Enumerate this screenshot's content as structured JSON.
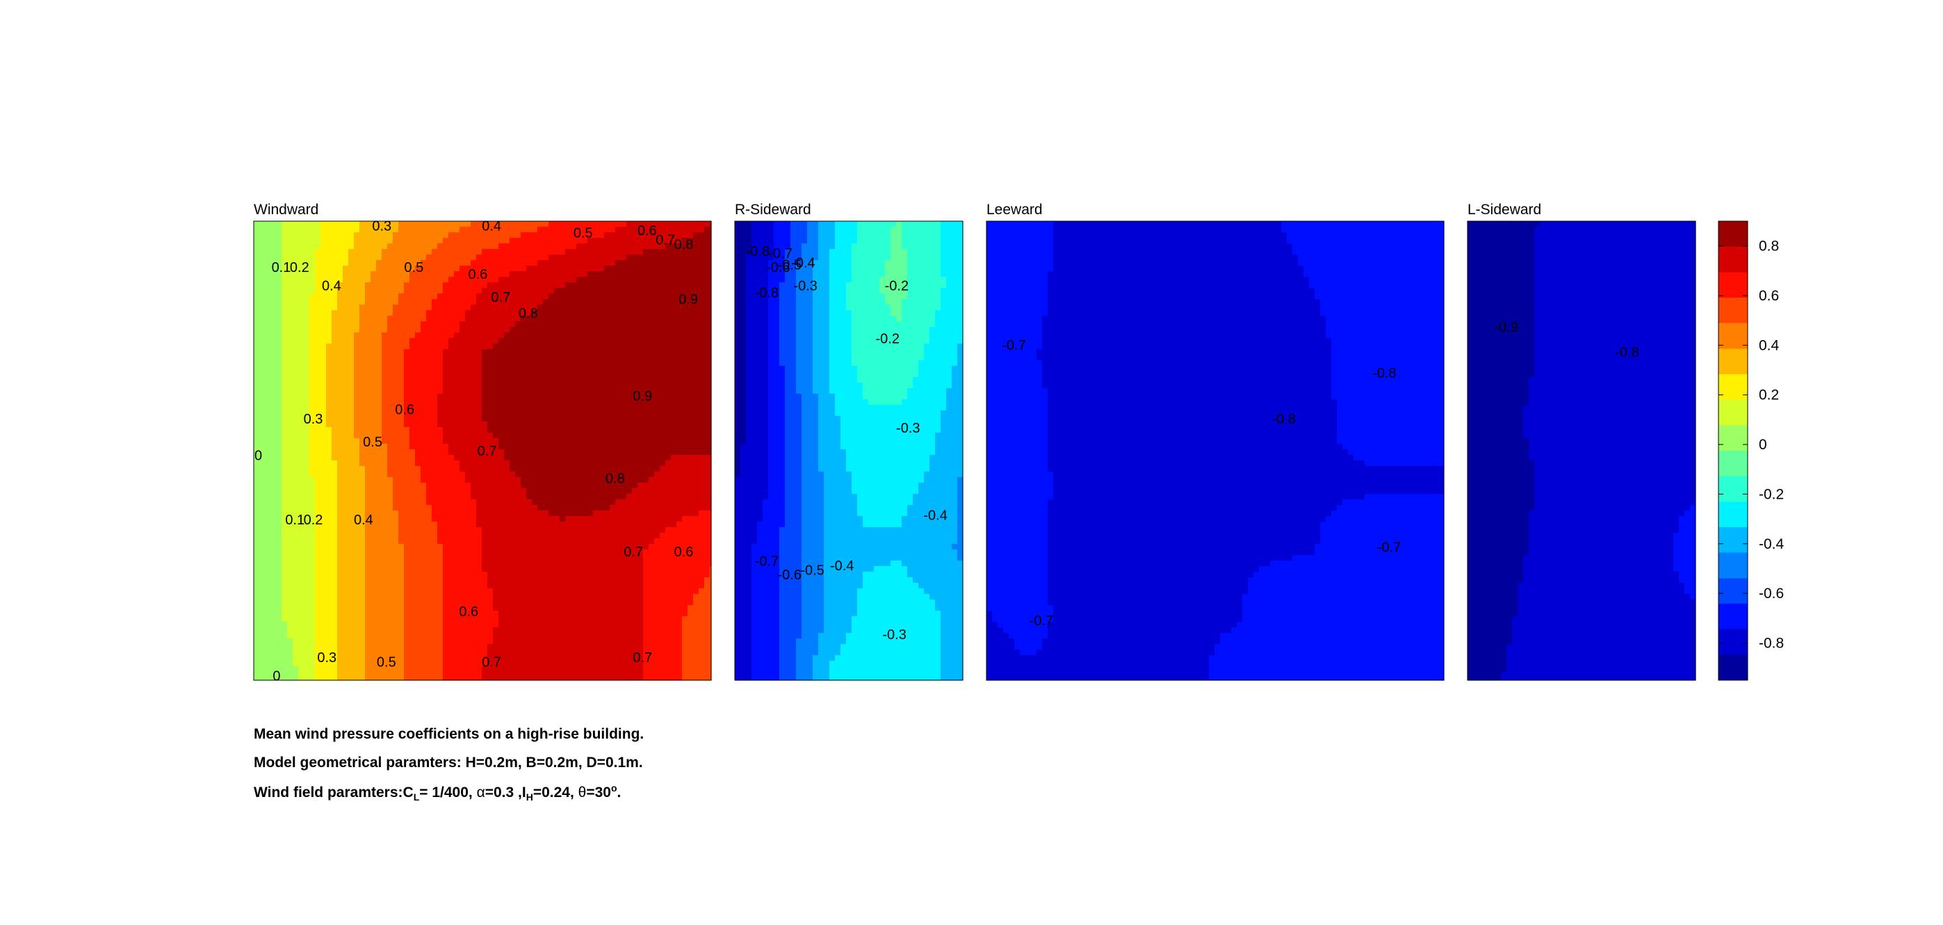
{
  "figure": {
    "caption_line1": "Mean wind pressure coefficients on a high-rise building.",
    "caption_line2": "Model geometrical paramters: H=0.2m, B=0.2m, D=0.1m.",
    "caption_line3": {
      "prefix": "Wind field paramters:C",
      "cl_sub": "L",
      "mid1": "= 1/400, ",
      "alpha": "α",
      "mid2": "=0.3 ,I",
      "ih_sub": "H",
      "mid3": "=0.24, ",
      "theta": "θ",
      "mid4": "=30",
      "deg_sup": "o",
      "suffix": "."
    }
  },
  "chart_data": [
    {
      "type": "heatmap",
      "title": "Windward",
      "z_range": [
        -0.95,
        0.9
      ],
      "grid": [
        [
          0.0,
          0.1,
          0.2,
          0.3,
          0.4,
          0.45,
          0.5,
          0.55,
          0.6,
          0.65,
          0.7,
          0.75,
          0.8
        ],
        [
          0.0,
          0.1,
          0.25,
          0.4,
          0.5,
          0.6,
          0.7,
          0.75,
          0.8,
          0.85,
          0.9,
          0.9,
          0.9
        ],
        [
          0.0,
          0.1,
          0.3,
          0.45,
          0.6,
          0.7,
          0.8,
          0.85,
          0.9,
          0.95,
          0.95,
          0.9,
          0.9
        ],
        [
          0.0,
          0.1,
          0.3,
          0.45,
          0.6,
          0.72,
          0.8,
          0.88,
          0.92,
          0.95,
          0.9,
          0.85,
          0.85
        ],
        [
          0.0,
          0.1,
          0.25,
          0.4,
          0.55,
          0.65,
          0.72,
          0.8,
          0.85,
          0.85,
          0.8,
          0.75,
          0.75
        ],
        [
          0.0,
          0.1,
          0.25,
          0.4,
          0.5,
          0.6,
          0.7,
          0.75,
          0.75,
          0.72,
          0.7,
          0.65,
          0.6
        ],
        [
          0.0,
          0.1,
          0.25,
          0.4,
          0.5,
          0.6,
          0.68,
          0.72,
          0.75,
          0.75,
          0.7,
          0.6,
          0.55
        ],
        [
          0.0,
          0.05,
          0.25,
          0.4,
          0.5,
          0.6,
          0.7,
          0.75,
          0.75,
          0.75,
          0.7,
          0.6,
          0.55
        ]
      ],
      "contour_labels": [
        {
          "text": "0.3",
          "x": 0.28,
          "y": 0.01
        },
        {
          "text": "0.4",
          "x": 0.52,
          "y": 0.01
        },
        {
          "text": "0.5",
          "x": 0.72,
          "y": 0.025
        },
        {
          "text": "0.6",
          "x": 0.86,
          "y": 0.02
        },
        {
          "text": "0.7",
          "x": 0.9,
          "y": 0.04
        },
        {
          "text": "0.8",
          "x": 0.94,
          "y": 0.05
        },
        {
          "text": "0.1",
          "x": 0.06,
          "y": 0.1
        },
        {
          "text": "0.2",
          "x": 0.1,
          "y": 0.1
        },
        {
          "text": "0.4",
          "x": 0.17,
          "y": 0.14
        },
        {
          "text": "0.5",
          "x": 0.35,
          "y": 0.1
        },
        {
          "text": "0.6",
          "x": 0.49,
          "y": 0.115
        },
        {
          "text": "0.7",
          "x": 0.54,
          "y": 0.165
        },
        {
          "text": "0.8",
          "x": 0.6,
          "y": 0.2
        },
        {
          "text": "0.9",
          "x": 0.95,
          "y": 0.17
        },
        {
          "text": "0.3",
          "x": 0.13,
          "y": 0.43
        },
        {
          "text": "0.6",
          "x": 0.33,
          "y": 0.41
        },
        {
          "text": "0.5",
          "x": 0.26,
          "y": 0.48
        },
        {
          "text": "0.9",
          "x": 0.85,
          "y": 0.38
        },
        {
          "text": "0",
          "x": 0.01,
          "y": 0.51
        },
        {
          "text": "0.7",
          "x": 0.51,
          "y": 0.5
        },
        {
          "text": "0.8",
          "x": 0.79,
          "y": 0.56
        },
        {
          "text": "0.1",
          "x": 0.09,
          "y": 0.65
        },
        {
          "text": "0.2",
          "x": 0.13,
          "y": 0.65
        },
        {
          "text": "0.4",
          "x": 0.24,
          "y": 0.65
        },
        {
          "text": "0.7",
          "x": 0.83,
          "y": 0.72
        },
        {
          "text": "0.6",
          "x": 0.94,
          "y": 0.72
        },
        {
          "text": "0.6",
          "x": 0.47,
          "y": 0.85
        },
        {
          "text": "0.3",
          "x": 0.16,
          "y": 0.95
        },
        {
          "text": "0.5",
          "x": 0.29,
          "y": 0.96
        },
        {
          "text": "0.7",
          "x": 0.52,
          "y": 0.96
        },
        {
          "text": "0.7",
          "x": 0.85,
          "y": 0.95
        },
        {
          "text": "0",
          "x": 0.05,
          "y": 0.99
        }
      ]
    },
    {
      "type": "heatmap",
      "title": "R-Sideward",
      "z_range": [
        -0.95,
        0.9
      ],
      "grid": [
        [
          -0.9,
          -0.8,
          -0.6,
          -0.35,
          -0.2,
          -0.12,
          -0.2,
          -0.3
        ],
        [
          -0.9,
          -0.75,
          -0.5,
          -0.3,
          -0.15,
          -0.1,
          -0.18,
          -0.3
        ],
        [
          -0.9,
          -0.75,
          -0.5,
          -0.3,
          -0.18,
          -0.15,
          -0.25,
          -0.35
        ],
        [
          -0.9,
          -0.75,
          -0.55,
          -0.35,
          -0.25,
          -0.25,
          -0.3,
          -0.4
        ],
        [
          -0.85,
          -0.75,
          -0.55,
          -0.38,
          -0.3,
          -0.3,
          -0.35,
          -0.45
        ],
        [
          -0.8,
          -0.7,
          -0.55,
          -0.4,
          -0.35,
          -0.35,
          -0.4,
          -0.45
        ],
        [
          -0.8,
          -0.7,
          -0.55,
          -0.4,
          -0.3,
          -0.25,
          -0.3,
          -0.4
        ],
        [
          -0.8,
          -0.7,
          -0.5,
          -0.3,
          -0.25,
          -0.25,
          -0.3,
          -0.4
        ]
      ],
      "contour_labels": [
        {
          "text": "-0.8",
          "x": 0.1,
          "y": 0.065
        },
        {
          "text": "-0.7",
          "x": 0.2,
          "y": 0.07
        },
        {
          "text": "-0.6",
          "x": 0.19,
          "y": 0.1
        },
        {
          "text": "-0.5",
          "x": 0.24,
          "y": 0.095
        },
        {
          "text": "-0.4",
          "x": 0.3,
          "y": 0.09
        },
        {
          "text": "-0.3",
          "x": 0.31,
          "y": 0.14
        },
        {
          "text": "-0.8",
          "x": 0.14,
          "y": 0.155
        },
        {
          "text": "-0.2",
          "x": 0.71,
          "y": 0.14
        },
        {
          "text": "-0.2",
          "x": 0.67,
          "y": 0.255
        },
        {
          "text": "-0.3",
          "x": 0.76,
          "y": 0.45
        },
        {
          "text": "-0.4",
          "x": 0.88,
          "y": 0.64
        },
        {
          "text": "-0.7",
          "x": 0.14,
          "y": 0.74
        },
        {
          "text": "-0.6",
          "x": 0.24,
          "y": 0.77
        },
        {
          "text": "-0.5",
          "x": 0.34,
          "y": 0.76
        },
        {
          "text": "-0.4",
          "x": 0.47,
          "y": 0.75
        },
        {
          "text": "-0.3",
          "x": 0.7,
          "y": 0.9
        }
      ]
    },
    {
      "type": "heatmap",
      "title": "Leeward",
      "z_range": [
        -0.95,
        0.9
      ],
      "grid": [
        [
          -0.65,
          -0.7,
          -0.75,
          -0.75,
          -0.75,
          -0.75,
          -0.75,
          -0.75,
          -0.75,
          -0.72,
          -0.7,
          -0.7,
          -0.7,
          -0.7
        ],
        [
          -0.7,
          -0.73,
          -0.75,
          -0.75,
          -0.75,
          -0.75,
          -0.75,
          -0.75,
          -0.78,
          -0.75,
          -0.72,
          -0.7,
          -0.7,
          -0.7
        ],
        [
          -0.72,
          -0.74,
          -0.75,
          -0.75,
          -0.75,
          -0.75,
          -0.75,
          -0.8,
          -0.82,
          -0.78,
          -0.73,
          -0.71,
          -0.71,
          -0.71
        ],
        [
          -0.68,
          -0.73,
          -0.75,
          -0.75,
          -0.75,
          -0.75,
          -0.75,
          -0.77,
          -0.8,
          -0.77,
          -0.74,
          -0.73,
          -0.73,
          -0.73
        ],
        [
          -0.68,
          -0.72,
          -0.75,
          -0.75,
          -0.75,
          -0.75,
          -0.75,
          -0.75,
          -0.75,
          -0.75,
          -0.75,
          -0.75,
          -0.75,
          -0.75
        ],
        [
          -0.7,
          -0.73,
          -0.75,
          -0.75,
          -0.75,
          -0.75,
          -0.75,
          -0.75,
          -0.75,
          -0.75,
          -0.73,
          -0.71,
          -0.69,
          -0.69
        ],
        [
          -0.75,
          -0.72,
          -0.75,
          -0.75,
          -0.75,
          -0.75,
          -0.75,
          -0.75,
          -0.72,
          -0.68,
          -0.66,
          -0.66,
          -0.66,
          -0.66
        ],
        [
          -0.8,
          -0.76,
          -0.75,
          -0.75,
          -0.75,
          -0.75,
          -0.75,
          -0.72,
          -0.68,
          -0.66,
          -0.66,
          -0.66,
          -0.66,
          -0.66
        ]
      ],
      "contour_labels": [
        {
          "text": "-0.7",
          "x": 0.06,
          "y": 0.27
        },
        {
          "text": "-0.8",
          "x": 0.65,
          "y": 0.43
        },
        {
          "text": "-0.8",
          "x": 0.87,
          "y": 0.33
        },
        {
          "text": "-0.7",
          "x": 0.88,
          "y": 0.71
        },
        {
          "text": "-0.7",
          "x": 0.12,
          "y": 0.87
        }
      ]
    },
    {
      "type": "heatmap",
      "title": "L-Sideward",
      "z_range": [
        -0.95,
        0.9
      ],
      "grid": [
        [
          -0.88,
          -0.85,
          -0.85,
          -0.83,
          -0.82,
          -0.8,
          -0.8,
          -0.8
        ],
        [
          -0.95,
          -0.88,
          -0.85,
          -0.82,
          -0.8,
          -0.78,
          -0.75,
          -0.75
        ],
        [
          -0.95,
          -0.88,
          -0.85,
          -0.82,
          -0.78,
          -0.75,
          -0.75,
          -0.75
        ],
        [
          -0.88,
          -0.86,
          -0.84,
          -0.8,
          -0.76,
          -0.75,
          -0.75,
          -0.75
        ],
        [
          -0.9,
          -0.88,
          -0.85,
          -0.78,
          -0.75,
          -0.75,
          -0.75,
          -0.75
        ],
        [
          -0.92,
          -0.88,
          -0.84,
          -0.76,
          -0.75,
          -0.75,
          -0.75,
          -0.73
        ],
        [
          -0.9,
          -0.87,
          -0.82,
          -0.75,
          -0.75,
          -0.75,
          -0.75,
          -0.75
        ],
        [
          -0.88,
          -0.85,
          -0.8,
          -0.75,
          -0.75,
          -0.75,
          -0.75,
          -0.75
        ]
      ],
      "contour_labels": [
        {
          "text": "-0.9",
          "x": 0.17,
          "y": 0.23
        },
        {
          "text": "-0.8",
          "x": 0.7,
          "y": 0.285
        }
      ]
    }
  ],
  "colorbar": {
    "ticks": [
      0.8,
      0.6,
      0.4,
      0.2,
      0,
      -0.2,
      -0.4,
      -0.6,
      -0.8
    ],
    "tick_labels": [
      "0.8",
      "0.6",
      "0.4",
      "0.2",
      "0",
      "-0.2",
      "-0.4",
      "-0.6",
      "-0.8"
    ],
    "range": [
      -0.95,
      0.9
    ]
  }
}
